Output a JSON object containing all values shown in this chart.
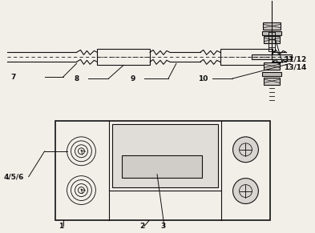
{
  "bg_color": "#f2efe9",
  "line_color": "#111111",
  "lw": 0.8,
  "fig_w": 3.93,
  "fig_h": 2.91,
  "dpi": 100
}
